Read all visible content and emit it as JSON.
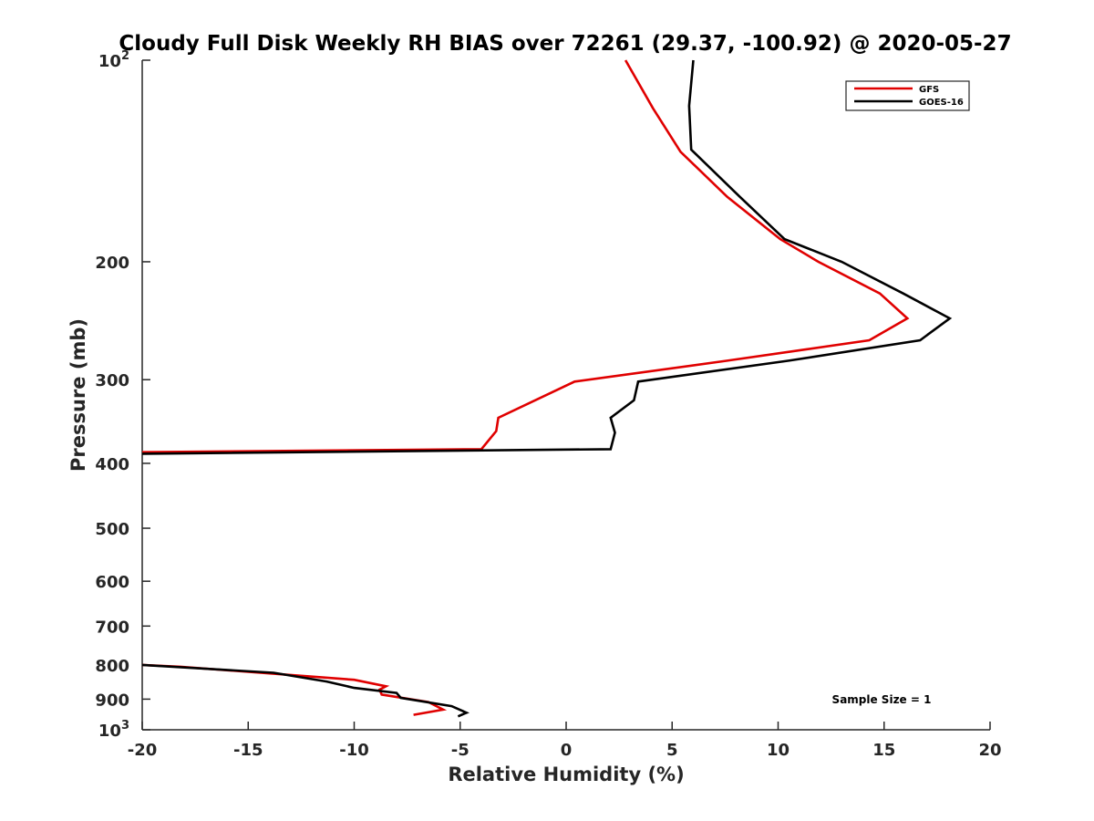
{
  "chart_data": {
    "type": "line",
    "title": "Cloudy Full Disk Weekly RH BIAS over 72261 (29.37, -100.92) @ 2020-05-27",
    "xlabel": "Relative Humidity (%)",
    "ylabel": "Pressure (mb)",
    "xlim": [
      -20,
      20
    ],
    "ylim": [
      1000,
      100
    ],
    "yscale": "log",
    "y_reversed": true,
    "grid": false,
    "x_ticks": [
      "-20",
      "-15",
      "-10",
      "-5",
      "0",
      "5",
      "10",
      "15",
      "20"
    ],
    "y_ticks": [
      {
        "value": 100,
        "base": "10",
        "exp": "2"
      },
      {
        "value": 200,
        "label": "200"
      },
      {
        "value": 300,
        "label": "300"
      },
      {
        "value": 400,
        "label": "400"
      },
      {
        "value": 500,
        "label": "500"
      },
      {
        "value": 600,
        "label": "600"
      },
      {
        "value": 700,
        "label": "700"
      },
      {
        "value": 800,
        "label": "800"
      },
      {
        "value": 900,
        "label": "900"
      },
      {
        "value": 1000,
        "base": "10",
        "exp": "3"
      }
    ],
    "legend_position": "top-right",
    "annotation": "Sample Size = 1",
    "series": [
      {
        "name": "GFS",
        "color": "#e00000",
        "segments": [
          [
            [
              2.8,
              100
            ],
            [
              4.1,
              118
            ],
            [
              5.4,
              137
            ],
            [
              7.6,
              160
            ],
            [
              10.1,
              185
            ],
            [
              11.9,
              200
            ],
            [
              14.8,
              223
            ],
            [
              16.1,
              243
            ],
            [
              14.3,
              262
            ],
            [
              7.6,
              281
            ],
            [
              0.4,
              302
            ],
            [
              -3.2,
              342
            ],
            [
              -3.3,
              358
            ],
            [
              -4.0,
              381
            ],
            [
              -20,
              385
            ]
          ],
          [
            [
              -20,
              800
            ],
            [
              -18.2,
              805
            ],
            [
              -10.0,
              842
            ],
            [
              -8.5,
              861
            ],
            [
              -8.8,
              871
            ],
            [
              -8.7,
              886
            ],
            [
              -6.5,
              909
            ],
            [
              -5.8,
              933
            ],
            [
              -7.2,
              950
            ]
          ]
        ]
      },
      {
        "name": "GOES-16",
        "color": "#000000",
        "segments": [
          [
            [
              6.0,
              100
            ],
            [
              5.8,
              117
            ],
            [
              5.9,
              136
            ],
            [
              8.2,
              160
            ],
            [
              10.3,
              185
            ],
            [
              13.0,
              200
            ],
            [
              15.9,
              223
            ],
            [
              18.1,
              243
            ],
            [
              16.7,
              262
            ],
            [
              10.5,
              281
            ],
            [
              3.4,
              302
            ],
            [
              3.2,
              322
            ],
            [
              2.1,
              342
            ],
            [
              2.3,
              360
            ],
            [
              2.1,
              381
            ],
            [
              -20,
              387
            ]
          ],
          [
            [
              -20,
              800
            ],
            [
              -13.8,
              822
            ],
            [
              -11.3,
              847
            ],
            [
              -10.0,
              866
            ],
            [
              -8.0,
              881
            ],
            [
              -7.8,
              896
            ],
            [
              -5.4,
              922
            ],
            [
              -4.7,
              943
            ],
            [
              -5.1,
              955
            ]
          ]
        ]
      }
    ]
  }
}
